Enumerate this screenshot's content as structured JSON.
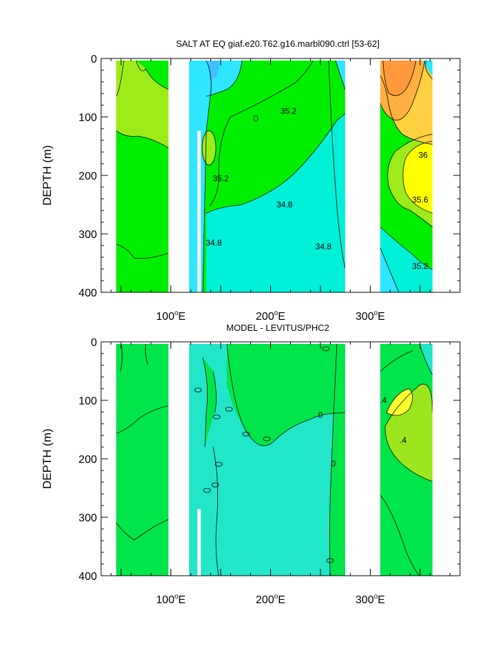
{
  "chart_data": [
    {
      "type": "contour",
      "title": "SALT AT EQ giaf.e20.T62.g16.marbl090.ctrl [53-62]",
      "xlabel": "",
      "ylabel": "DEPTH (m)",
      "xlim": [
        30,
        390
      ],
      "ylim": [
        400,
        0
      ],
      "x_ticks": [
        100,
        200,
        300
      ],
      "x_ticklabels": [
        "100",
        "200",
        "300"
      ],
      "x_tick_unit": "°E",
      "y_ticks": [
        0,
        100,
        200,
        300,
        400
      ],
      "y_ticklabels": [
        "0",
        "100",
        "200",
        "300",
        "400"
      ],
      "contour_labels": [
        {
          "text": "35.2",
          "lon": 218,
          "depth": 90
        },
        {
          "text": "35.2",
          "lon": 150,
          "depth": 205
        },
        {
          "text": "34.8",
          "lon": 214,
          "depth": 250
        },
        {
          "text": "34.8",
          "lon": 143,
          "depth": 315
        },
        {
          "text": "34.8",
          "lon": 253,
          "depth": 322
        },
        {
          "text": "36",
          "lon": 353,
          "depth": 165
        },
        {
          "text": "35.6",
          "lon": 350,
          "depth": 242
        },
        {
          "text": "35.2",
          "lon": 350,
          "depth": 355
        }
      ],
      "colors": {
        "ocean_main": "#00ef00",
        "deep": "#00f0d8",
        "fresh": "#2ee6ff",
        "salty": "#ffff00",
        "orange": "#ff9a3c"
      }
    },
    {
      "type": "contour",
      "title": "MODEL - LEVITUS/PHC2",
      "xlabel": "",
      "ylabel": "DEPTH (m)",
      "xlim": [
        30,
        390
      ],
      "ylim": [
        400,
        0
      ],
      "x_ticks": [
        100,
        200,
        300
      ],
      "x_ticklabels": [
        "100",
        "200",
        "300"
      ],
      "x_tick_unit": "°E",
      "y_ticks": [
        0,
        100,
        200,
        300,
        400
      ],
      "y_ticklabels": [
        "0",
        "100",
        "200",
        "300",
        "400"
      ],
      "contour_labels": [
        {
          "text": "0",
          "lon": 250,
          "depth": 125
        },
        {
          "text": "0",
          "lon": 263,
          "depth": 208
        },
        {
          "text": ".4",
          "lon": 313,
          "depth": 100
        },
        {
          "text": ".4",
          "lon": 333,
          "depth": 168
        }
      ],
      "colors": {
        "main": "#00e64a",
        "cyan": "#22e6c8",
        "yellow": "#ffff2e",
        "lime": "#9be61c"
      }
    }
  ]
}
